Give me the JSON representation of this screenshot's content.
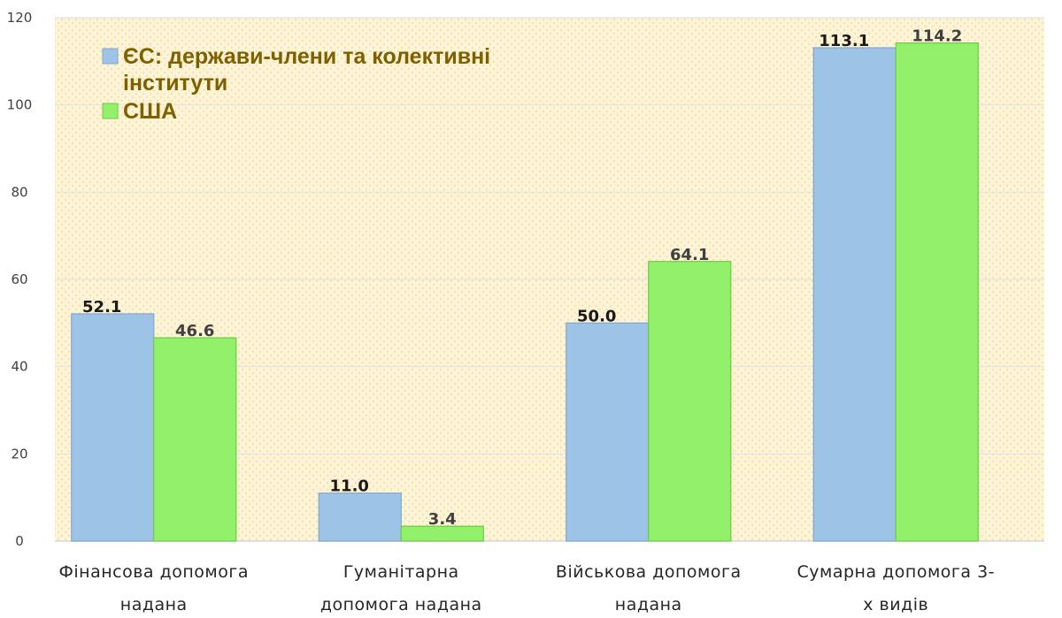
{
  "chart_data": {
    "type": "bar",
    "title": "",
    "xlabel": "",
    "ylabel": "",
    "ylim": [
      0,
      120
    ],
    "yticks": [
      0,
      20,
      40,
      60,
      80,
      100,
      120
    ],
    "grid": true,
    "legend_position": "top-left",
    "categories": [
      [
        "Фінансова допомога",
        "надана"
      ],
      [
        "Гуманітарна",
        "допомога надана"
      ],
      [
        "Військова допомога",
        "надана"
      ],
      [
        "Сумарна допомога 3-",
        "х видів"
      ]
    ],
    "series": [
      {
        "name": [
          "ЄС: держави-члени та колективні",
          "інститути"
        ],
        "color": "#9dc3e6",
        "edge": "#7fa7cf",
        "values": [
          52.1,
          11.0,
          50.0,
          113.1
        ],
        "labels": [
          "52.1",
          "11.0",
          "50.0",
          "113.1"
        ],
        "label_color": "#1a1a1a"
      },
      {
        "name": [
          "США"
        ],
        "color": "#92f06a",
        "edge": "#6ccc44",
        "values": [
          46.6,
          3.4,
          64.1,
          114.2
        ],
        "labels": [
          "46.6",
          "3.4",
          "64.1",
          "114.2"
        ],
        "label_color": "#404040"
      }
    ],
    "plot_background": "#fdf3d6"
  }
}
